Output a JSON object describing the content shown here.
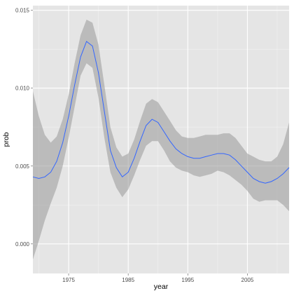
{
  "chart_data": {
    "type": "line",
    "xlabel": "year",
    "ylabel": "prob",
    "xlim": [
      1969,
      2012
    ],
    "ylim": [
      -0.0019,
      0.0153
    ],
    "x_ticks": [
      1975,
      1985,
      1995,
      2005
    ],
    "x_tick_labels": [
      "1975",
      "1985",
      "1995",
      "2005"
    ],
    "y_ticks": [
      0.0,
      0.005,
      0.01,
      0.015
    ],
    "y_tick_labels": [
      "0.000",
      "0.005",
      "0.010",
      "0.015"
    ],
    "grid": true,
    "legend": "none",
    "colors": {
      "panel": "#e5e5e5",
      "grid_major": "#ffffff",
      "grid_minor": "#f2f2f2",
      "ribbon": "#999999",
      "line": "#3366ff"
    },
    "series": [
      {
        "x": [
          1969,
          1970,
          1971,
          1972,
          1973,
          1974,
          1975,
          1976,
          1977,
          1978,
          1979,
          1980,
          1981,
          1982,
          1983,
          1984,
          1985,
          1986,
          1987,
          1988,
          1989,
          1990,
          1991,
          1992,
          1993,
          1994,
          1995,
          1996,
          1997,
          1998,
          1999,
          2000,
          2001,
          2002,
          2003,
          2004,
          2005,
          2006,
          2007,
          2008,
          2009,
          2010,
          2011,
          2012
        ],
        "y": [
          0.0043,
          0.0042,
          0.0043,
          0.0046,
          0.0053,
          0.0065,
          0.0082,
          0.0102,
          0.012,
          0.013,
          0.0127,
          0.011,
          0.0085,
          0.006,
          0.0049,
          0.0043,
          0.0046,
          0.0055,
          0.0066,
          0.0076,
          0.008,
          0.0078,
          0.0072,
          0.0066,
          0.0061,
          0.0058,
          0.0056,
          0.0055,
          0.0055,
          0.0056,
          0.0057,
          0.0058,
          0.0058,
          0.0057,
          0.0054,
          0.005,
          0.0046,
          0.0042,
          0.004,
          0.0039,
          0.004,
          0.0042,
          0.0045,
          0.0049
        ],
        "upper": [
          0.0098,
          0.0082,
          0.007,
          0.0065,
          0.0069,
          0.008,
          0.0096,
          0.0116,
          0.0134,
          0.0144,
          0.0142,
          0.0128,
          0.0102,
          0.0075,
          0.0062,
          0.0056,
          0.0058,
          0.0067,
          0.0079,
          0.009,
          0.0093,
          0.0091,
          0.0085,
          0.0079,
          0.0073,
          0.0069,
          0.0068,
          0.0068,
          0.0069,
          0.007,
          0.007,
          0.007,
          0.0071,
          0.0071,
          0.0068,
          0.0063,
          0.0058,
          0.0056,
          0.0054,
          0.0053,
          0.0053,
          0.0056,
          0.0064,
          0.0078
        ],
        "lower": [
          -0.001,
          0.0002,
          0.0015,
          0.0026,
          0.0036,
          0.005,
          0.0068,
          0.0088,
          0.0108,
          0.0116,
          0.0113,
          0.0094,
          0.0068,
          0.0046,
          0.0036,
          0.003,
          0.0035,
          0.0044,
          0.0054,
          0.0063,
          0.0066,
          0.0066,
          0.006,
          0.0053,
          0.0049,
          0.0047,
          0.0046,
          0.0044,
          0.0043,
          0.0044,
          0.0045,
          0.0047,
          0.0046,
          0.0044,
          0.0041,
          0.0038,
          0.0034,
          0.0029,
          0.0027,
          0.0028,
          0.0028,
          0.0028,
          0.0025,
          0.0021
        ]
      }
    ]
  }
}
